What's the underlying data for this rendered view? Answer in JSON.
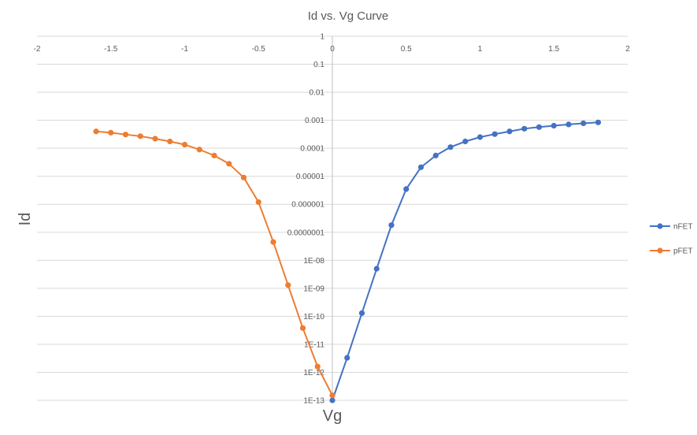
{
  "chart_data": {
    "type": "line",
    "title": "Id vs. Vg Curve",
    "xlabel": "Vg",
    "ylabel": "Id",
    "xlim": [
      -2,
      2
    ],
    "ylim": [
      1e-13,
      1
    ],
    "y_scale": "log",
    "grid": true,
    "legend_position": "right",
    "x_ticks": [
      -2,
      -1.5,
      -1,
      -0.5,
      0,
      0.5,
      1,
      1.5,
      2
    ],
    "x_tick_labels": [
      "-2",
      "-1.5",
      "-1",
      "-0.5",
      "0",
      "0.5",
      "1",
      "1.5",
      "2"
    ],
    "y_ticks": [
      1,
      0.1,
      0.01,
      0.001,
      0.0001,
      1e-05,
      1e-06,
      1e-07,
      1e-08,
      1e-09,
      1e-10,
      1e-11,
      1e-12,
      1e-13
    ],
    "y_tick_labels": [
      "1",
      "0.1",
      "0.01",
      "0.001",
      "0.0001",
      "0.00001",
      "0.000001",
      "0.0000001",
      "1E-08",
      "1E-09",
      "1E-10",
      "1E-11",
      "1E-12",
      "1E-13"
    ],
    "series": [
      {
        "name": "nFET",
        "color": "#4472C4",
        "x": [
          0,
          0.1,
          0.2,
          0.3,
          0.4,
          0.5,
          0.6,
          0.7,
          0.8,
          0.9,
          1.0,
          1.1,
          1.2,
          1.3,
          1.4,
          1.5,
          1.6,
          1.7,
          1.8
        ],
        "y": [
          1e-13,
          3.3e-12,
          1.3e-10,
          5e-09,
          1.8e-07,
          3.5e-06,
          2.1e-05,
          5.5e-05,
          0.00011,
          0.000175,
          0.00025,
          0.00032,
          0.0004,
          0.0005,
          0.00057,
          0.00064,
          0.00071,
          0.00078,
          0.00084
        ]
      },
      {
        "name": "pFET",
        "color": "#ED7D31",
        "x": [
          -1.6,
          -1.5,
          -1.4,
          -1.3,
          -1.2,
          -1.1,
          -1.0,
          -0.9,
          -0.8,
          -0.7,
          -0.6,
          -0.5,
          -0.4,
          -0.3,
          -0.2,
          -0.1,
          0
        ],
        "y": [
          0.0004,
          0.00036,
          0.00031,
          0.00027,
          0.00022,
          0.000175,
          0.000135,
          9e-05,
          5.5e-05,
          2.8e-05,
          9e-06,
          1.2e-06,
          4.5e-08,
          1.3e-09,
          3.8e-11,
          1.6e-12,
          1.5e-13
        ]
      }
    ]
  }
}
